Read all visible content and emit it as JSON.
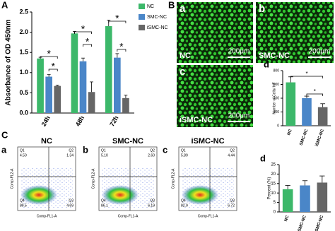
{
  "panel_labels": [
    "A",
    "B",
    "C"
  ],
  "images": [
    {
      "label": "a",
      "name": "NC",
      "scale": "200μm"
    },
    {
      "label": "b",
      "name": "SMC-NC",
      "scale": "200μm"
    },
    {
      "label": "c",
      "name": "iSMC-NC",
      "scale": "200μm"
    }
  ],
  "flow": {
    "x_label": "Comp-FL1-A",
    "y_label": "Comp-FL2-A",
    "plots": [
      {
        "label": "a",
        "title": "NC",
        "quadrants": [
          {
            "name": "Q1",
            "value": "4.50"
          },
          {
            "name": "Q2",
            "value": "1.34"
          },
          {
            "name": "Q3",
            "value": "4.69"
          },
          {
            "name": "Q4",
            "value": "89.5"
          }
        ]
      },
      {
        "label": "b",
        "title": "SMC-NC",
        "quadrants": [
          {
            "name": "Q1",
            "value": "5.10"
          },
          {
            "name": "Q2",
            "value": "2.60"
          },
          {
            "name": "Q3",
            "value": "6.19"
          },
          {
            "name": "Q4",
            "value": "86.1"
          }
        ]
      },
      {
        "label": "c",
        "title": "iSMC-NC",
        "quadrants": [
          {
            "name": "Q1",
            "value": "5.89"
          },
          {
            "name": "Q2",
            "value": "4.44"
          },
          {
            "name": "Q3",
            "value": "6.72"
          },
          {
            "name": "Q4",
            "value": "82.9"
          }
        ]
      }
    ]
  },
  "chart_data": [
    {
      "type": "bar",
      "y_label": "Absorbance of OD 450nm",
      "categories": [
        "24h",
        "48h",
        "72h"
      ],
      "series": [
        {
          "name": "NC",
          "color": "#3cb86a",
          "values": [
            1.35,
            1.97,
            2.15
          ],
          "errors": [
            0.03,
            0.05,
            0.15
          ]
        },
        {
          "name": "SMC-NC",
          "color": "#4a86c8",
          "values": [
            0.9,
            1.28,
            1.37
          ],
          "errors": [
            0.05,
            0.08,
            0.1
          ]
        },
        {
          "name": "iSMC-NC",
          "color": "#666666",
          "values": [
            0.67,
            0.52,
            0.37
          ],
          "errors": [
            0.02,
            0.25,
            0.07
          ]
        }
      ],
      "ylim": [
        0,
        2.5
      ],
      "yticks": [
        {
          "value": 0,
          "label": "0.0"
        },
        0.5,
        {
          "value": 1,
          "label": "1.0"
        },
        1.5,
        {
          "value": 2,
          "label": "2.0"
        },
        2.5
      ],
      "annotations": [
        "*",
        "*",
        "*",
        "*",
        "*",
        "*"
      ]
    },
    {
      "type": "bar",
      "label": "d",
      "y_label": "Number of Cells/ HF",
      "categories": [
        "NC",
        "SMC-NC",
        "iSMC-NC"
      ],
      "values": [
        630,
        400,
        270
      ],
      "errors": [
        80,
        30,
        50
      ],
      "colors": [
        "#3cb86a",
        "#4a86c8",
        "#666666"
      ],
      "ylim": [
        0,
        800
      ],
      "yticks": [
        0,
        200,
        400,
        600,
        800
      ],
      "annotations": [
        "*",
        "*"
      ]
    },
    {
      "type": "bar",
      "label": "d",
      "y_label": "Percent (%)",
      "categories": [
        "NC",
        "SMC-NC",
        "iSMC-NC"
      ],
      "values": [
        12,
        14,
        15.5
      ],
      "errors": [
        2,
        2.5,
        3.5
      ],
      "colors": [
        "#3cb86a",
        "#4a86c8",
        "#666666"
      ],
      "ylim": [
        0,
        25
      ],
      "yticks": [
        0,
        5,
        10,
        15,
        20,
        25
      ]
    }
  ]
}
